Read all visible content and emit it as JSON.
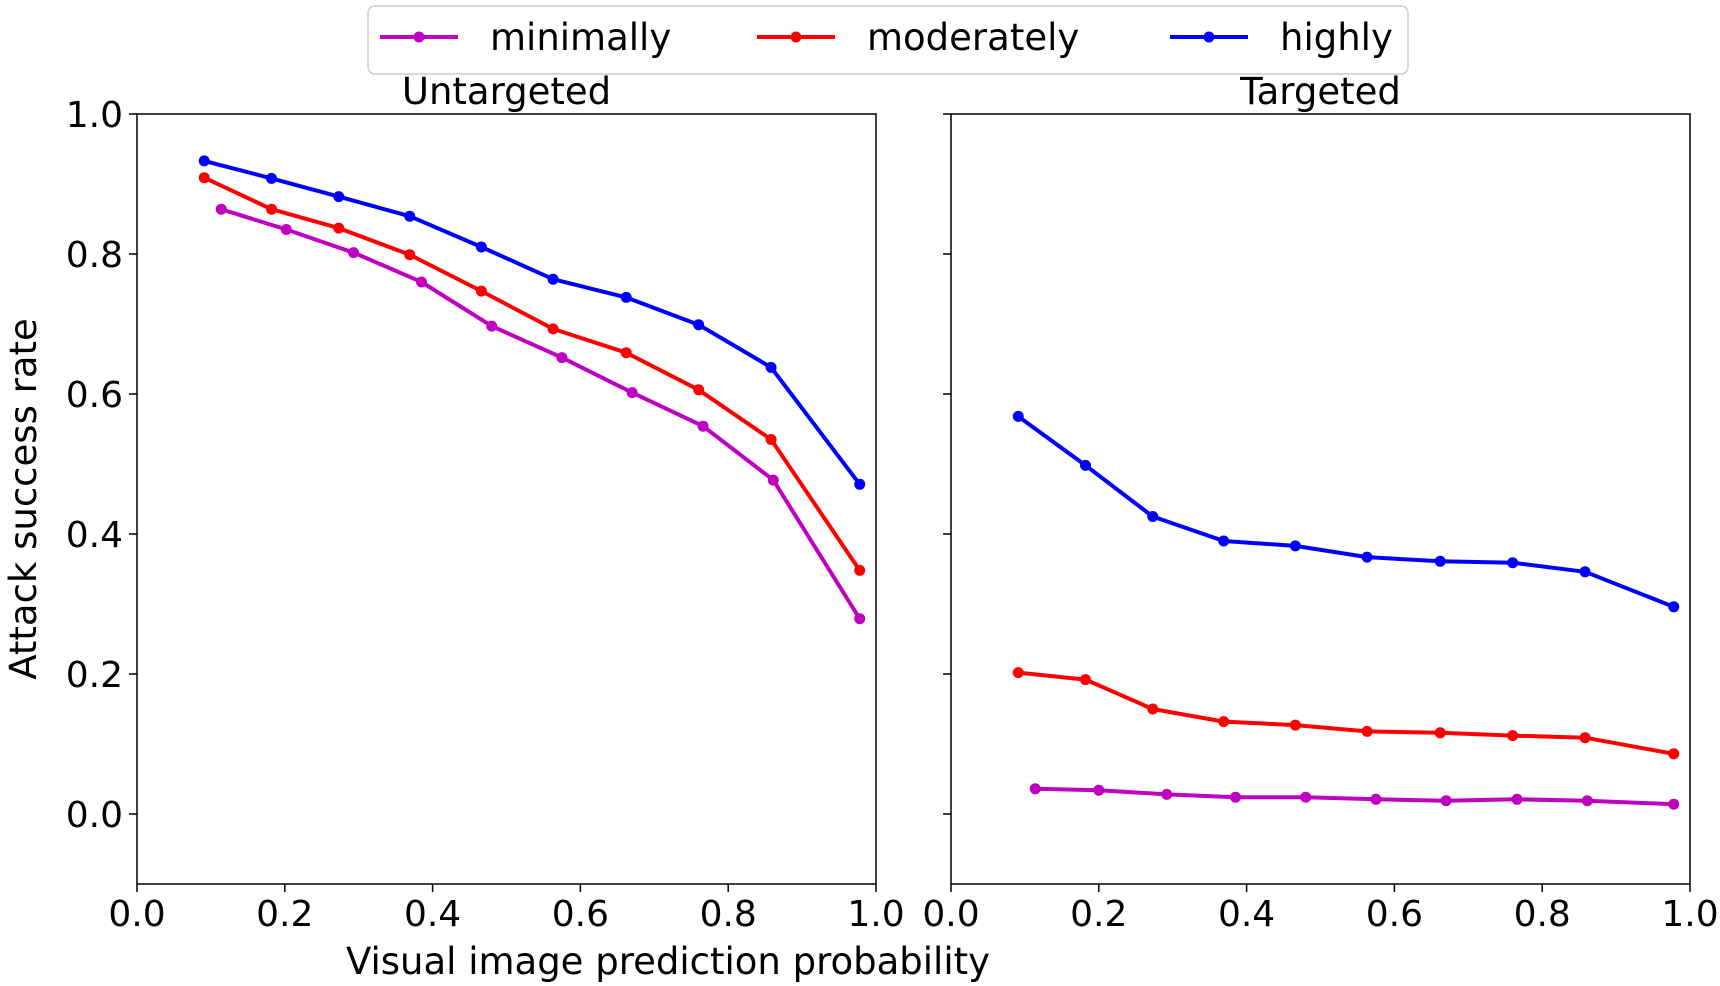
{
  "chart_data": {
    "type": "line",
    "xlabel": "Visual image prediction probability",
    "ylabel": "Attack success rate",
    "xlim": [
      0.0,
      1.0
    ],
    "ylim": [
      -0.1,
      1.0
    ],
    "xticks": [
      "0.0",
      "0.2",
      "0.4",
      "0.6",
      "0.8",
      "1.0"
    ],
    "yticks": [
      "0.0",
      "0.2",
      "0.4",
      "0.6",
      "0.8",
      "1.0"
    ],
    "legend": {
      "position": "top-center",
      "entries": [
        {
          "name": "minimally",
          "color": "#c000c0"
        },
        {
          "name": "moderately",
          "color": "#ff0000"
        },
        {
          "name": "highly",
          "color": "#0000ff"
        }
      ]
    },
    "panels": [
      {
        "title": "Untargeted",
        "series": [
          {
            "name": "minimally",
            "color": "#c000c0",
            "x": [
              0.114,
              0.202,
              0.293,
              0.385,
              0.48,
              0.575,
              0.67,
              0.766,
              0.861,
              0.978
            ],
            "y": [
              0.864,
              0.835,
              0.802,
              0.76,
              0.697,
              0.652,
              0.602,
              0.554,
              0.477,
              0.279
            ]
          },
          {
            "name": "moderately",
            "color": "#ff0000",
            "x": [
              0.091,
              0.182,
              0.273,
              0.369,
              0.466,
              0.563,
              0.662,
              0.76,
              0.858,
              0.978
            ],
            "y": [
              0.909,
              0.864,
              0.837,
              0.799,
              0.747,
              0.693,
              0.659,
              0.606,
              0.535,
              0.348
            ]
          },
          {
            "name": "highly",
            "color": "#0000ff",
            "x": [
              0.091,
              0.182,
              0.273,
              0.369,
              0.466,
              0.563,
              0.662,
              0.76,
              0.858,
              0.978
            ],
            "y": [
              0.933,
              0.908,
              0.882,
              0.854,
              0.81,
              0.764,
              0.738,
              0.699,
              0.638,
              0.471
            ]
          }
        ]
      },
      {
        "title": "Targeted",
        "series": [
          {
            "name": "minimally",
            "color": "#c000c0",
            "x": [
              0.114,
              0.2,
              0.292,
              0.385,
              0.48,
              0.575,
              0.67,
              0.766,
              0.861,
              0.978
            ],
            "y": [
              0.036,
              0.034,
              0.028,
              0.024,
              0.024,
              0.021,
              0.019,
              0.021,
              0.019,
              0.014
            ]
          },
          {
            "name": "moderately",
            "color": "#ff0000",
            "x": [
              0.091,
              0.182,
              0.273,
              0.369,
              0.466,
              0.563,
              0.662,
              0.76,
              0.858,
              0.978
            ],
            "y": [
              0.202,
              0.192,
              0.15,
              0.132,
              0.127,
              0.118,
              0.116,
              0.112,
              0.109,
              0.086
            ]
          },
          {
            "name": "highly",
            "color": "#0000ff",
            "x": [
              0.091,
              0.182,
              0.273,
              0.369,
              0.466,
              0.563,
              0.662,
              0.76,
              0.858,
              0.978
            ],
            "y": [
              0.568,
              0.498,
              0.425,
              0.39,
              0.383,
              0.367,
              0.361,
              0.359,
              0.346,
              0.296
            ]
          }
        ]
      }
    ]
  }
}
